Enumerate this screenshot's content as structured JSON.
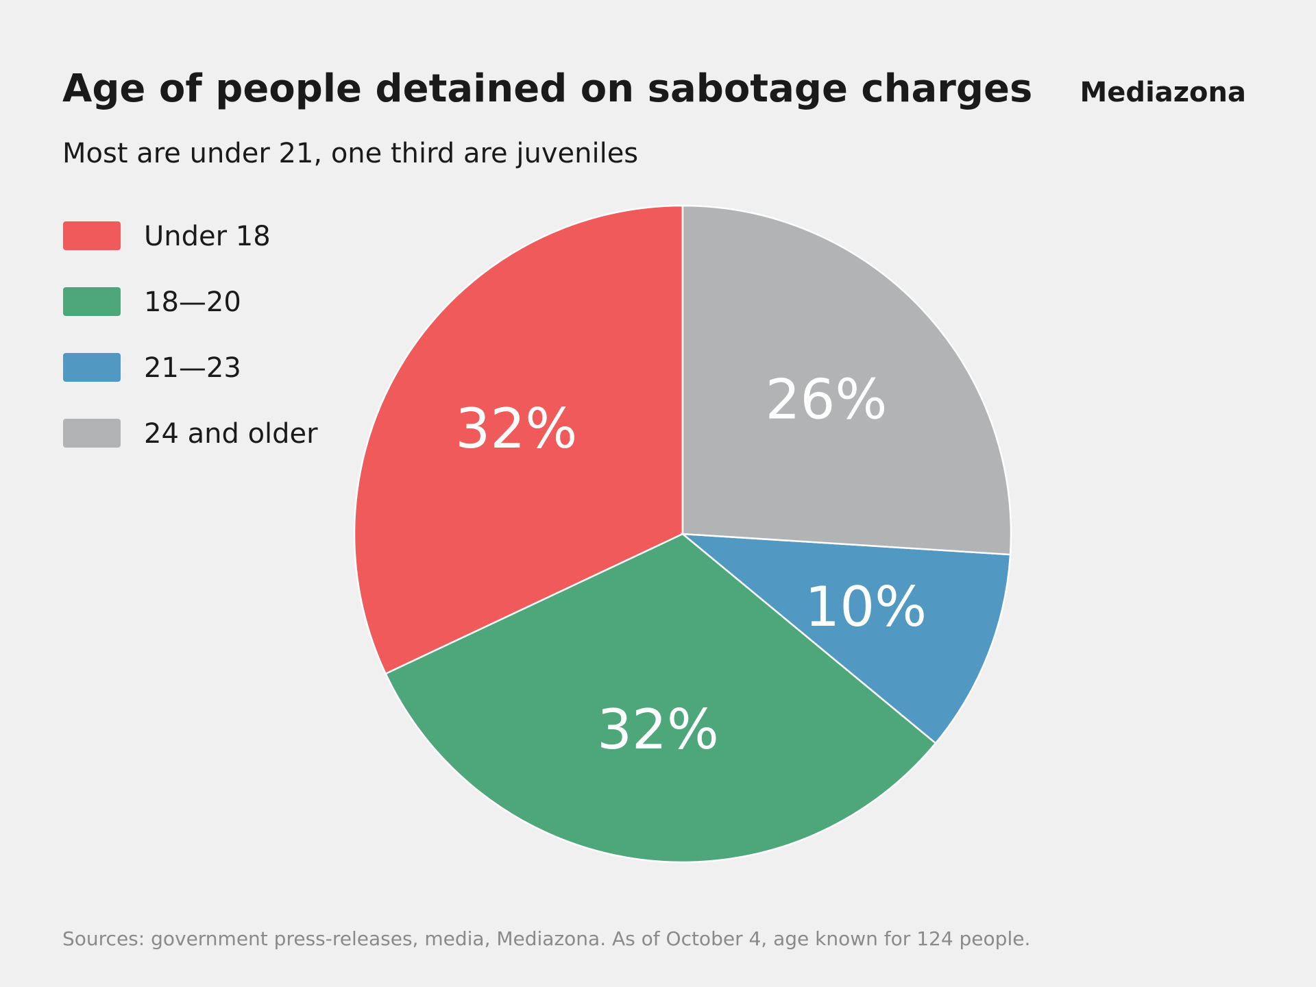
{
  "chart_data": {
    "type": "pie",
    "title": "Age of people detained on sabotage charges",
    "subtitle": "Most are under 21, one third are juveniles",
    "brand": "Mediazona",
    "source": "Sources: government press-releases, media, Mediazona. As of October 4, age known for 124 people.",
    "categories": [
      "Under 18",
      "18—20",
      "21—23",
      "24 and older"
    ],
    "values": [
      32,
      32,
      10,
      26
    ],
    "value_labels": [
      "32%",
      "32%",
      "10%",
      "26%"
    ],
    "colors": [
      "#f05a5a",
      "#4da77b",
      "#5199c2",
      "#b2b3b4"
    ],
    "legend": "top-left"
  }
}
